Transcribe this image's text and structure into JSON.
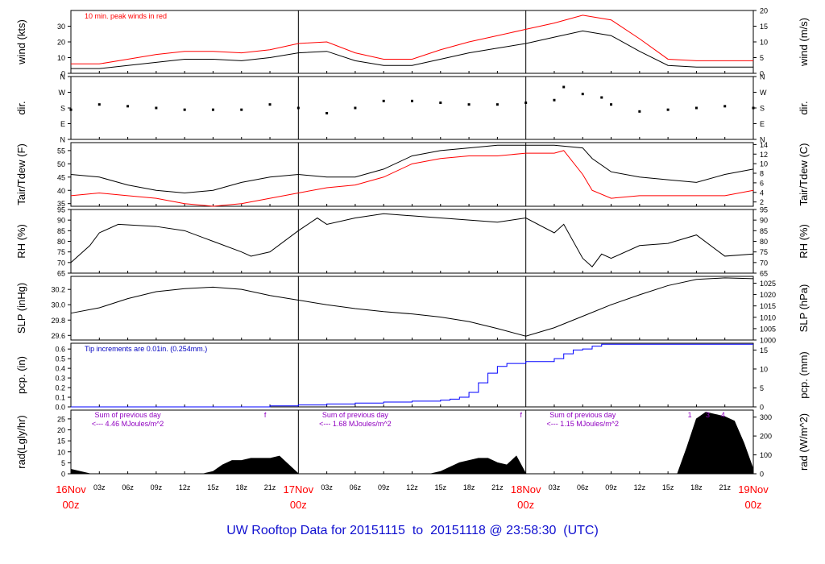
{
  "footer": {
    "title_prefix": "UW Rooftop Data for",
    "start_date": "20151115",
    "to_word": "to",
    "end_date": "20151118",
    "at_word": "@",
    "time": "23:58:30",
    "tz": "(UTC)"
  },
  "colors": {
    "black_series": "#000000",
    "red_series": "#ff0000",
    "blue_series": "#0000ff",
    "annotation_purple": "#9000c0",
    "annotation_blue": "#0000c0",
    "axis_red": "#ff0000"
  },
  "chart_data": [
    {
      "id": "wind",
      "type": "line",
      "ylabel": "wind (kts)",
      "ylabel_right": "wind (m/s)",
      "ylim": [
        0,
        40
      ],
      "yticks": [
        0,
        10,
        20,
        30
      ],
      "right_ylim": [
        0,
        20
      ],
      "right_yticks": [
        0,
        5,
        10,
        15,
        20
      ],
      "annotation": "10 min. peak winds in red",
      "series": [
        {
          "color": "#000000",
          "x": [
            0,
            3,
            6,
            9,
            12,
            15,
            18,
            21,
            24,
            27,
            30,
            33,
            36,
            39,
            42,
            45,
            48,
            51,
            54,
            57,
            60,
            63,
            66,
            69,
            72
          ],
          "values": [
            3,
            3,
            5,
            7,
            9,
            9,
            8,
            10,
            13,
            14,
            8,
            5,
            5,
            9,
            13,
            16,
            19,
            23,
            27,
            24,
            14,
            5,
            4,
            4,
            4
          ]
        },
        {
          "color": "#ff0000",
          "x": [
            0,
            3,
            6,
            9,
            12,
            15,
            18,
            21,
            24,
            27,
            30,
            33,
            36,
            39,
            42,
            45,
            48,
            51,
            54,
            57,
            60,
            63,
            66,
            69,
            72
          ],
          "values": [
            6,
            6,
            9,
            12,
            14,
            14,
            13,
            15,
            19,
            20,
            13,
            9,
            9,
            15,
            20,
            24,
            28,
            32,
            37,
            34,
            22,
            9,
            8,
            8,
            8
          ]
        }
      ]
    },
    {
      "id": "dir",
      "type": "scatter",
      "ylabel": "dir.",
      "ylabel_right": "dir.",
      "yticks": [
        "N",
        "E",
        "S",
        "W",
        "N"
      ],
      "right_yticks": [
        "N",
        "E",
        "S",
        "W",
        "N"
      ],
      "series": [
        {
          "color": "#000000",
          "x": [
            0,
            3,
            6,
            9,
            12,
            15,
            18,
            21,
            24,
            27,
            30,
            33,
            36,
            39,
            42,
            45,
            48,
            51,
            52,
            54,
            56,
            57,
            60,
            63,
            66,
            69,
            72
          ],
          "values": [
            170,
            200,
            190,
            180,
            170,
            170,
            170,
            200,
            180,
            150,
            180,
            220,
            220,
            210,
            200,
            200,
            210,
            225,
            300,
            260,
            240,
            200,
            160,
            170,
            180,
            190,
            180
          ]
        }
      ]
    },
    {
      "id": "temp",
      "type": "line",
      "ylabel": "Tair/Tdew (F)",
      "ylabel_right": "Tair/Tdew (C)",
      "ylim": [
        34,
        58
      ],
      "yticks": [
        35,
        40,
        45,
        50,
        55
      ],
      "right_ylim": [
        1.1,
        14.4
      ],
      "right_yticks": [
        2,
        4,
        6,
        8,
        10,
        12,
        14
      ],
      "series": [
        {
          "color": "#000000",
          "x": [
            0,
            3,
            6,
            9,
            12,
            15,
            18,
            21,
            24,
            27,
            30,
            33,
            36,
            39,
            42,
            45,
            48,
            51,
            54,
            55,
            57,
            60,
            63,
            66,
            69,
            72
          ],
          "values": [
            46,
            45,
            42,
            40,
            39,
            40,
            43,
            45,
            46,
            45,
            45,
            48,
            53,
            55,
            56,
            57,
            57,
            57,
            56,
            52,
            47,
            45,
            44,
            43,
            46,
            48
          ]
        },
        {
          "color": "#ff0000",
          "x": [
            0,
            3,
            6,
            9,
            12,
            15,
            18,
            21,
            24,
            27,
            30,
            33,
            36,
            39,
            42,
            45,
            48,
            51,
            52,
            54,
            55,
            57,
            60,
            63,
            66,
            69,
            72
          ],
          "values": [
            38,
            39,
            38,
            37,
            35,
            34,
            35,
            37,
            39,
            41,
            42,
            45,
            50,
            52,
            53,
            53,
            54,
            54,
            55,
            46,
            40,
            37,
            38,
            38,
            38,
            38,
            40
          ]
        }
      ]
    },
    {
      "id": "rh",
      "type": "line",
      "ylabel": "RH (%)",
      "ylabel_right": "RH (%)",
      "ylim": [
        65,
        95
      ],
      "yticks": [
        65,
        70,
        75,
        80,
        85,
        90,
        95
      ],
      "right_yticks": [
        65,
        70,
        75,
        80,
        85,
        90,
        95
      ],
      "series": [
        {
          "color": "#000000",
          "x": [
            0,
            2,
            3,
            5,
            9,
            12,
            15,
            18,
            19,
            21,
            24,
            26,
            27,
            30,
            33,
            36,
            39,
            42,
            45,
            48,
            51,
            52,
            54,
            55,
            56,
            57,
            60,
            63,
            66,
            69,
            72
          ],
          "values": [
            70,
            78,
            84,
            88,
            87,
            85,
            80,
            75,
            73,
            75,
            85,
            91,
            88,
            91,
            93,
            92,
            91,
            90,
            89,
            91,
            84,
            88,
            72,
            68,
            74,
            72,
            78,
            79,
            83,
            73,
            74
          ]
        }
      ]
    },
    {
      "id": "slp",
      "type": "line",
      "ylabel": "SLP (inHg)",
      "ylabel_right": "SLP (hPa)",
      "ylim": [
        29.54,
        30.37
      ],
      "yticks": [
        29.6,
        29.8,
        30.0,
        30.2
      ],
      "right_ylim": [
        1000,
        1028
      ],
      "right_yticks": [
        1000,
        1005,
        1010,
        1015,
        1020,
        1025
      ],
      "series": [
        {
          "color": "#000000",
          "x": [
            0,
            3,
            6,
            9,
            12,
            15,
            18,
            21,
            24,
            27,
            30,
            33,
            36,
            39,
            42,
            45,
            48,
            51,
            54,
            57,
            60,
            63,
            66,
            69,
            72
          ],
          "values": [
            29.89,
            29.96,
            30.08,
            30.17,
            30.21,
            30.23,
            30.2,
            30.12,
            30.06,
            30.0,
            29.95,
            29.91,
            29.88,
            29.84,
            29.78,
            29.69,
            29.59,
            29.7,
            29.85,
            30.0,
            30.13,
            30.25,
            30.33,
            30.35,
            30.34
          ]
        }
      ]
    },
    {
      "id": "pcp",
      "type": "line",
      "ylabel": "pcp. (in)",
      "ylabel_right": "pcp. (mm)",
      "ylim": [
        0,
        0.66
      ],
      "yticks": [
        0.0,
        0.1,
        0.2,
        0.3,
        0.4,
        0.5,
        0.6
      ],
      "right_ylim": [
        0,
        16.8
      ],
      "right_yticks": [
        0,
        5,
        10,
        15
      ],
      "annotation": "Tip increments are 0.01in. (0.254mm.)",
      "series": [
        {
          "color": "#0000ff",
          "x": [
            0,
            18,
            21,
            24,
            27,
            30,
            33,
            36,
            39,
            40,
            41,
            42,
            43,
            44,
            45,
            46,
            48,
            51,
            52,
            53,
            54,
            55,
            56,
            57,
            60,
            63,
            66,
            69,
            72
          ],
          "values": [
            0,
            0,
            0.01,
            0.02,
            0.03,
            0.04,
            0.05,
            0.06,
            0.07,
            0.08,
            0.1,
            0.15,
            0.25,
            0.35,
            0.42,
            0.45,
            0.47,
            0.5,
            0.55,
            0.59,
            0.6,
            0.63,
            0.65,
            0.65,
            0.65,
            0.65,
            0.65,
            0.65,
            0.65
          ]
        }
      ]
    },
    {
      "id": "rad",
      "type": "area",
      "ylabel": "rad(Lgly/hr)",
      "ylabel_right": "rad (W/m^2)",
      "ylim": [
        0,
        29
      ],
      "yticks": [
        0,
        5,
        10,
        15,
        20,
        25
      ],
      "right_ylim": [
        0,
        337
      ],
      "right_yticks": [
        0,
        100,
        200,
        300
      ],
      "series": [
        {
          "color": "#000000",
          "x": [
            0,
            1,
            2,
            14,
            15,
            16,
            17,
            18,
            19,
            20,
            21,
            22,
            23,
            24,
            38,
            39,
            40,
            41,
            42,
            43,
            44,
            45,
            46,
            47,
            48,
            64,
            65,
            66,
            67,
            68,
            69,
            70,
            71,
            72
          ],
          "values": [
            2,
            1,
            0,
            0,
            1,
            4,
            6,
            6,
            7,
            7,
            7,
            8,
            4,
            0,
            0,
            1,
            3,
            5,
            6,
            7,
            7,
            5,
            4,
            8,
            0,
            0,
            12,
            25,
            28,
            27,
            26,
            24,
            14,
            2
          ]
        }
      ],
      "annotations": [
        {
          "line1": "Sum of previous day",
          "line2": "<--- 4.46 MJoules/m^2",
          "x": 6
        },
        {
          "line1": "Sum of previous day",
          "line2": "<--- 1.68 MJoules/m^2",
          "x": 30
        },
        {
          "line1": "Sum of previous day",
          "line2": "<--- 1.15 MJoules/m^2",
          "x": 54
        }
      ],
      "markers": [
        {
          "label": "f",
          "x": 20.5
        },
        {
          "label": "f",
          "x": 47.5
        },
        {
          "label": "1",
          "x": 65.3
        },
        {
          "label": "3",
          "x": 67.2
        },
        {
          "label": "4",
          "x": 68.8
        }
      ]
    }
  ],
  "time_axis": {
    "range_hours": [
      0,
      72
    ],
    "minor_ticks": [
      {
        "h": 3,
        "label": "03z"
      },
      {
        "h": 6,
        "label": "06z"
      },
      {
        "h": 9,
        "label": "09z"
      },
      {
        "h": 12,
        "label": "12z"
      },
      {
        "h": 15,
        "label": "15z"
      },
      {
        "h": 18,
        "label": "18z"
      },
      {
        "h": 21,
        "label": "21z"
      },
      {
        "h": 27,
        "label": "03z"
      },
      {
        "h": 30,
        "label": "06z"
      },
      {
        "h": 33,
        "label": "09z"
      },
      {
        "h": 36,
        "label": "12z"
      },
      {
        "h": 39,
        "label": "15z"
      },
      {
        "h": 42,
        "label": "18z"
      },
      {
        "h": 45,
        "label": "21z"
      },
      {
        "h": 51,
        "label": "03z"
      },
      {
        "h": 54,
        "label": "06z"
      },
      {
        "h": 57,
        "label": "09z"
      },
      {
        "h": 60,
        "label": "12z"
      },
      {
        "h": 63,
        "label": "15z"
      },
      {
        "h": 66,
        "label": "18z"
      },
      {
        "h": 69,
        "label": "21z"
      }
    ],
    "day_ticks": [
      {
        "h": 0,
        "date": "16Nov",
        "time": "00z"
      },
      {
        "h": 24,
        "date": "17Nov",
        "time": "00z"
      },
      {
        "h": 48,
        "date": "18Nov",
        "time": "00z"
      },
      {
        "h": 72,
        "date": "19Nov",
        "time": "00z"
      }
    ]
  }
}
